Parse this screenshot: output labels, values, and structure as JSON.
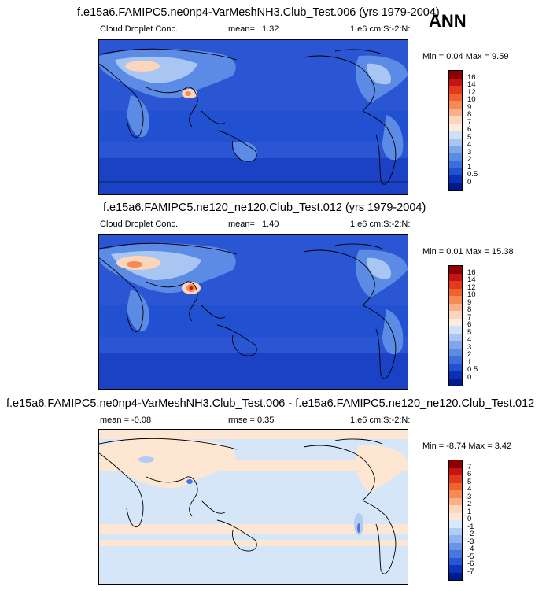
{
  "header": {
    "season": "ANN"
  },
  "panels": [
    {
      "title": "f.e15a6.FAMIPC5.ne0np4-VarMeshNH3.Club_Test.006 (yrs 1979-2004)",
      "left_label": "Cloud Droplet Conc.",
      "mean_label": "mean=",
      "mean_value": "1.32",
      "units": "1.e6 cm:S:-2:N:",
      "min_max": "Min =  0.04 Max =  9.59",
      "colorbar_labels": [
        "16",
        "14",
        "12",
        "10",
        "9",
        "8",
        "7",
        "6",
        "5",
        "4",
        "3",
        "2",
        "1",
        "0.5",
        "0"
      ]
    },
    {
      "title": "f.e15a6.FAMIPC5.ne120_ne120.Club_Test.012 (yrs 1979-2004)",
      "left_label": "Cloud Droplet Conc.",
      "mean_label": "mean=",
      "mean_value": "1.40",
      "units": "1.e6 cm:S:-2:N:",
      "min_max": "Min =  0.01 Max = 15.38",
      "colorbar_labels": [
        "16",
        "14",
        "12",
        "10",
        "9",
        "8",
        "7",
        "6",
        "5",
        "4",
        "3",
        "2",
        "1",
        "0.5",
        "0"
      ]
    },
    {
      "title": "f.e15a6.FAMIPC5.ne0np4-VarMeshNH3.Club_Test.006 - f.e15a6.FAMIPC5.ne120_ne120.Club_Test.012",
      "mean_text": "mean = -0.08",
      "rmse_text": "rmse =   0.35",
      "units": "1.e6 cm:S:-2:N:",
      "min_max": "Min = -8.74 Max =  3.42",
      "colorbar_labels": [
        "7",
        "6",
        "5",
        "4",
        "3",
        "2",
        "1",
        "0",
        "-1",
        "-2",
        "-3",
        "-4",
        "-5",
        "-6",
        "-7"
      ]
    }
  ],
  "colors": {
    "abs_scale": [
      "#8b0000",
      "#c41414",
      "#e33a1e",
      "#f0622f",
      "#f58a55",
      "#f9b08a",
      "#fbd5bc",
      "#fdebdd",
      "#cfe1f7",
      "#a8c6f1",
      "#7ea8ea",
      "#5b8be4",
      "#3d6fdc",
      "#2150d0",
      "#0a30b4",
      "#001a8c"
    ],
    "diff_scale": [
      "#8b0000",
      "#c41414",
      "#e33a1e",
      "#f0622f",
      "#f58a55",
      "#f9b08a",
      "#fbd5bc",
      "#fde6d2",
      "#d6e8fb",
      "#b1cdf3",
      "#8fb3ee",
      "#6c94e6",
      "#4a75df",
      "#2a55d3",
      "#0e33bb",
      "#001a8c"
    ],
    "ocean_abs": "#2a55d3",
    "diff_bg": "#d5e6f9",
    "diff_land": "#fde6d2"
  }
}
